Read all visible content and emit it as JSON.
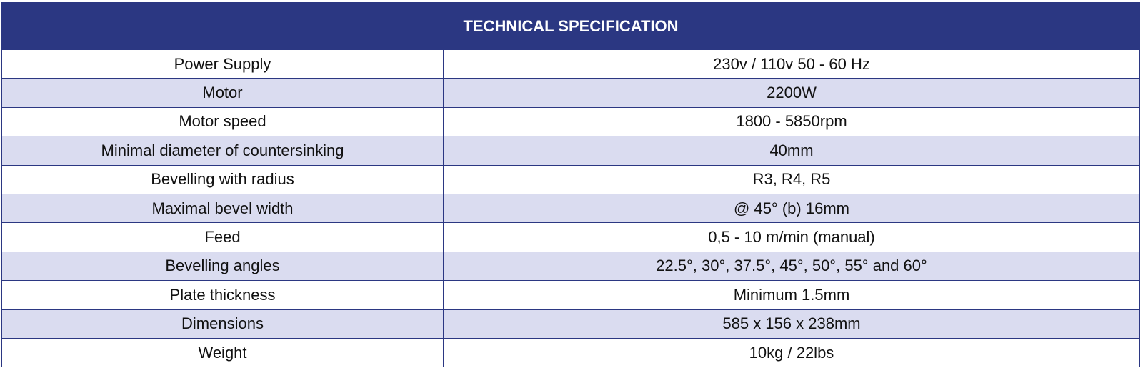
{
  "table": {
    "title": "TECHNICAL SPECIFICATION",
    "rows": [
      [
        "Power Supply",
        "230v / 110v 50 - 60 Hz"
      ],
      [
        "Motor",
        "2200W"
      ],
      [
        "Motor speed",
        "1800 - 5850rpm"
      ],
      [
        "Minimal diameter of countersinking",
        "40mm"
      ],
      [
        "Bevelling with radius",
        "R3, R4, R5"
      ],
      [
        "Maximal bevel width",
        "@ 45° (b) 16mm"
      ],
      [
        "Feed",
        "0,5 - 10 m/min (manual)"
      ],
      [
        "Bevelling angles",
        "22.5°, 30°, 37.5°, 45°, 50°, 55° and 60°"
      ],
      [
        "Plate thickness",
        "Minimum 1.5mm"
      ],
      [
        "Dimensions",
        "585 x 156 x 238mm"
      ],
      [
        "Weight",
        "10kg / 22lbs"
      ]
    ]
  }
}
